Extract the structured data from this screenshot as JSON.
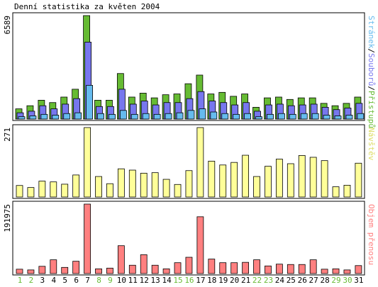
{
  "chart_data": {
    "type": "bar",
    "title": "Denní statistika za květen 2004",
    "colors": {
      "pristupu": "#66bb33",
      "souboru": "#7777ee",
      "stranek": "#66bbee",
      "navstevy": "#ffff99",
      "prenosy": "#ff8080",
      "weekend_label": "#66bb33",
      "weekday_label": "#000000"
    },
    "categories": [
      "1",
      "2",
      "3",
      "4",
      "5",
      "6",
      "7",
      "8",
      "9",
      "10",
      "11",
      "12",
      "13",
      "14",
      "15",
      "16",
      "17",
      "18",
      "19",
      "20",
      "21",
      "22",
      "23",
      "24",
      "25",
      "26",
      "27",
      "28",
      "29",
      "30",
      "31"
    ],
    "weekend_days": [
      "1",
      "2",
      "8",
      "9",
      "15",
      "16",
      "22",
      "23",
      "29",
      "30"
    ],
    "panels": [
      {
        "id": "hits",
        "max_label": "6589",
        "ylim": [
          0,
          6589
        ],
        "legend_parts": [
          {
            "text": "Stránek",
            "color": "#66bbee"
          },
          {
            "text": "/",
            "color": "#000000"
          },
          {
            "text": "Souborů",
            "color": "#7777ee"
          },
          {
            "text": "/",
            "color": "#000000"
          },
          {
            "text": "Přístupů",
            "color": "#66bb33"
          }
        ],
        "series": [
          {
            "key": "pristupu",
            "values": [
              650,
              850,
              1200,
              1050,
              1400,
              1900,
              6589,
              1200,
              1200,
              2900,
              1400,
              1650,
              1350,
              1550,
              1600,
              2250,
              2800,
              1600,
              1700,
              1450,
              1600,
              750,
              1350,
              1400,
              1250,
              1350,
              1350,
              1000,
              850,
              1000,
              1400
            ]
          },
          {
            "key": "souboru",
            "values": [
              400,
              500,
              850,
              650,
              950,
              1300,
              4900,
              800,
              800,
              1900,
              950,
              1150,
              900,
              1050,
              1050,
              1300,
              1750,
              1150,
              1050,
              900,
              1050,
              500,
              900,
              950,
              850,
              900,
              950,
              750,
              600,
              700,
              1000
            ]
          },
          {
            "key": "stranek",
            "values": [
              150,
              200,
              300,
              250,
              350,
              400,
              2150,
              350,
              300,
              550,
              300,
              350,
              300,
              350,
              400,
              550,
              650,
              450,
              350,
              300,
              350,
              150,
              300,
              350,
              300,
              350,
              350,
              250,
              200,
              250,
              350
            ]
          }
        ]
      },
      {
        "id": "visits",
        "max_label": "271",
        "ylim": [
          0,
          271
        ],
        "legend_parts": [
          {
            "text": "Návštěv",
            "color": "#dddd66"
          }
        ],
        "series": [
          {
            "key": "navstevy",
            "values": [
              45,
              37,
              62,
              59,
              50,
              86,
              271,
              80,
              52,
              110,
              105,
              93,
              95,
              69,
              49,
              103,
              271,
              140,
              125,
              135,
              163,
              80,
              120,
              148,
              130,
              162,
              155,
              142,
              40,
              46,
              132
            ]
          }
        ]
      },
      {
        "id": "bytes",
        "max_label": "191975",
        "ylim": [
          0,
          191975
        ],
        "legend_parts": [
          {
            "text": "Objem přenosu",
            "color": "#ff8080"
          }
        ],
        "series": [
          {
            "key": "prenosy",
            "values": [
              12000,
              10000,
              20000,
              38000,
              17000,
              34000,
              191975,
              13000,
              15000,
              77000,
              23000,
              52000,
              23000,
              13000,
              30000,
              45000,
              157000,
              40000,
              30000,
              30000,
              31000,
              38000,
              21000,
              26000,
              25000,
              25000,
              38000,
              12000,
              13000,
              10000,
              22000
            ]
          }
        ]
      }
    ]
  }
}
